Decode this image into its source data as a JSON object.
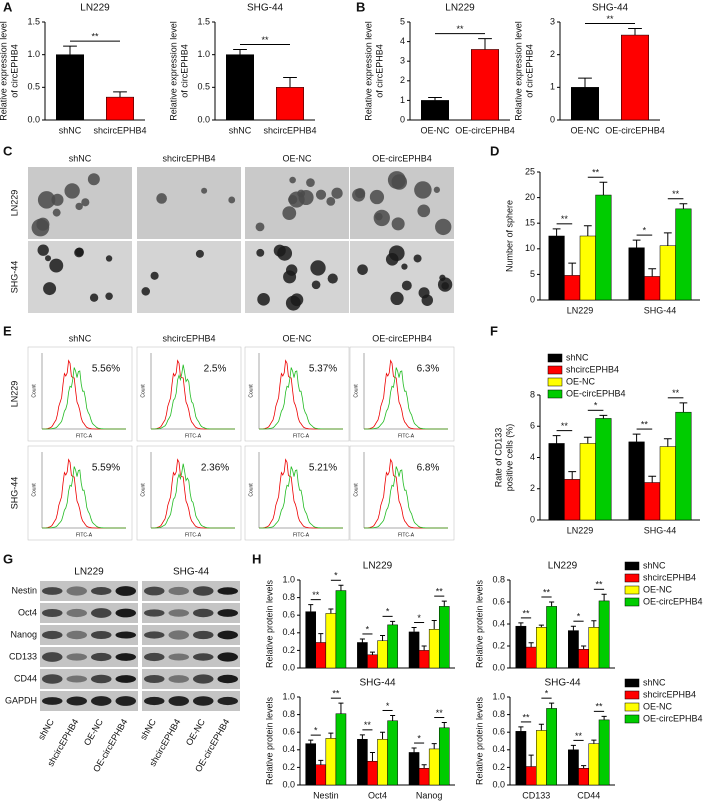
{
  "chart_data": [
    {
      "type": "bar",
      "panel": "A",
      "title": "LN229",
      "ylabel": [
        "Relative expression level",
        "of circEPHB4"
      ],
      "categories": [
        "shNC",
        "shcircEPHB4"
      ],
      "values": [
        1.0,
        0.35
      ],
      "errors": [
        0.13,
        0.08
      ],
      "colors": [
        "#000000",
        "#ff0000"
      ],
      "ylim": [
        0,
        1.5
      ],
      "yticks": [
        {
          "value": 0,
          "label": "0.0"
        },
        0.5,
        {
          "value": 1,
          "label": "1.0"
        },
        1.5
      ],
      "significance": "**"
    },
    {
      "type": "bar",
      "title": "SHG-44",
      "ylabel": [
        "Relative expression level",
        "of circEPHB4"
      ],
      "categories": [
        "shNC",
        "shcircEPHB4"
      ],
      "values": [
        1.0,
        0.5
      ],
      "errors": [
        0.08,
        0.15
      ],
      "colors": [
        "#000000",
        "#ff0000"
      ],
      "ylim": [
        0,
        1.5
      ],
      "yticks": [
        {
          "value": 0,
          "label": "0.0"
        },
        0.5,
        {
          "value": 1,
          "label": "1.0"
        },
        1.5
      ],
      "significance": "**"
    },
    {
      "type": "bar",
      "panel": "B",
      "title": "LN229",
      "ylabel": [
        "Relative expression level",
        "of circEPHB4"
      ],
      "categories": [
        "OE-NC",
        "OE-circEPHB4"
      ],
      "values": [
        1.0,
        3.6
      ],
      "errors": [
        0.15,
        0.55
      ],
      "colors": [
        "#000000",
        "#ff0000"
      ],
      "ylim": [
        0,
        5
      ],
      "yticks": [
        0,
        1,
        2,
        3,
        4,
        5
      ],
      "significance": "**"
    },
    {
      "type": "bar",
      "title": "SHG-44",
      "ylabel": [
        "Relative expression level",
        "of circEPHB4"
      ],
      "categories": [
        "OE-NC",
        "OE-circEPHB4"
      ],
      "values": [
        1.0,
        2.6
      ],
      "errors": [
        0.28,
        0.2
      ],
      "colors": [
        "#000000",
        "#ff0000"
      ],
      "ylim": [
        0,
        3
      ],
      "yticks": [
        0,
        1,
        2,
        3
      ],
      "significance": "**"
    },
    {
      "type": "bar",
      "panel": "D",
      "ylabel": [
        "Number of sphere"
      ],
      "categories": [
        "LN229",
        "SHG-44"
      ],
      "series": [
        {
          "color": "#000000",
          "values": [
            12.5,
            10.2
          ],
          "errors": [
            1.4,
            1.5
          ]
        },
        {
          "color": "#ff0000",
          "values": [
            4.8,
            4.6
          ],
          "errors": [
            2.4,
            1.5
          ]
        },
        {
          "color": "#ffff00",
          "values": [
            12.5,
            10.6
          ],
          "errors": [
            2.0,
            2.5
          ]
        },
        {
          "color": "#00cc00",
          "values": [
            20.5,
            17.8
          ],
          "errors": [
            2.5,
            1.0
          ]
        }
      ],
      "ylim": [
        0,
        25
      ],
      "yticks": [
        0,
        5,
        10,
        15,
        20,
        25
      ],
      "significance": [
        [
          "**",
          "**"
        ],
        [
          "*",
          "**"
        ]
      ]
    },
    {
      "type": "bar",
      "panel": "F",
      "ylabel": [
        "Rate of CD133",
        "positive cells (%)"
      ],
      "categories": [
        "LN229",
        "SHG-44"
      ],
      "legend": "top",
      "series": [
        {
          "name": "shNC",
          "color": "#000000",
          "values": [
            4.9,
            5.0
          ],
          "errors": [
            0.5,
            0.5
          ]
        },
        {
          "name": "shcircEPHB4",
          "color": "#ff0000",
          "values": [
            2.6,
            2.4
          ],
          "errors": [
            0.5,
            0.4
          ]
        },
        {
          "name": "OE-NC",
          "color": "#ffff00",
          "values": [
            4.9,
            4.7
          ],
          "errors": [
            0.4,
            0.5
          ]
        },
        {
          "name": "OE-circEPHB4",
          "color": "#00cc00",
          "values": [
            6.5,
            6.9
          ],
          "errors": [
            0.2,
            0.6
          ]
        }
      ],
      "ylim": [
        0,
        8
      ],
      "yticks": [
        0,
        2,
        4,
        6,
        8
      ],
      "significance": [
        [
          "**",
          "*"
        ],
        [
          "**",
          "**"
        ]
      ]
    },
    {
      "type": "bar",
      "panel": "H",
      "title": "LN229",
      "ylabel": [
        "Relative protein levels"
      ],
      "categories": [
        null,
        null,
        null
      ],
      "series": [
        {
          "color": "#000000",
          "values": [
            0.64,
            0.29,
            0.41
          ],
          "errors": [
            0.08,
            0.04,
            0.05
          ]
        },
        {
          "color": "#ff0000",
          "values": [
            0.29,
            0.15,
            0.2
          ],
          "errors": [
            0.1,
            0.03,
            0.05
          ]
        },
        {
          "color": "#ffff00",
          "values": [
            0.62,
            0.31,
            0.44
          ],
          "errors": [
            0.05,
            0.06,
            0.1
          ]
        },
        {
          "color": "#00cc00",
          "values": [
            0.88,
            0.49,
            0.7
          ],
          "errors": [
            0.06,
            0.04,
            0.06
          ]
        }
      ],
      "ylim": [
        0,
        1
      ],
      "yticks": [
        {
          "value": 0,
          "label": "0.0"
        },
        0.2,
        0.4,
        0.6,
        0.8,
        {
          "value": 1,
          "label": "1.0"
        }
      ],
      "significance": [
        [
          "**",
          "*"
        ],
        [
          "*",
          "*"
        ],
        [
          "*",
          "**"
        ]
      ]
    },
    {
      "type": "bar",
      "title": "LN229",
      "ylabel": [
        "Relative protein levels"
      ],
      "categories": [
        null,
        null
      ],
      "legend": "right",
      "series": [
        {
          "name": "shNC",
          "color": "#000000",
          "values": [
            0.38,
            0.34
          ],
          "errors": [
            0.03,
            0.04
          ]
        },
        {
          "name": "shcircEPHB4",
          "color": "#ff0000",
          "values": [
            0.19,
            0.17
          ],
          "errors": [
            0.04,
            0.03
          ]
        },
        {
          "name": "OE-NC",
          "color": "#ffff00",
          "values": [
            0.37,
            0.37
          ],
          "errors": [
            0.02,
            0.06
          ]
        },
        {
          "name": "OE-circEPHB4",
          "color": "#00cc00",
          "values": [
            0.56,
            0.61
          ],
          "errors": [
            0.04,
            0.06
          ]
        }
      ],
      "ylim": [
        0,
        0.8
      ],
      "yticks": [
        {
          "value": 0,
          "label": "0.0"
        },
        0.2,
        0.4,
        0.6,
        0.8
      ],
      "significance": [
        [
          "**",
          "**"
        ],
        [
          "*",
          "**"
        ]
      ]
    },
    {
      "type": "bar",
      "title": "SHG-44",
      "ylabel": [
        "Relative protein levels"
      ],
      "categories": [
        "Nestin",
        "Oct4",
        "Nanog"
      ],
      "series": [
        {
          "color": "#000000",
          "values": [
            0.47,
            0.52,
            0.37
          ],
          "errors": [
            0.04,
            0.05,
            0.05
          ]
        },
        {
          "color": "#ff0000",
          "values": [
            0.23,
            0.27,
            0.19
          ],
          "errors": [
            0.05,
            0.1,
            0.04
          ]
        },
        {
          "color": "#ffff00",
          "values": [
            0.53,
            0.52,
            0.41
          ],
          "errors": [
            0.06,
            0.08,
            0.06
          ]
        },
        {
          "color": "#00cc00",
          "values": [
            0.81,
            0.73,
            0.65
          ],
          "errors": [
            0.12,
            0.06,
            0.06
          ]
        }
      ],
      "ylim": [
        0,
        1
      ],
      "yticks": [
        {
          "value": 0,
          "label": "0.0"
        },
        0.2,
        0.4,
        0.6,
        0.8,
        {
          "value": 1,
          "label": "1.0"
        }
      ],
      "significance": [
        [
          "*",
          "**"
        ],
        [
          "**",
          "*"
        ],
        [
          "*",
          "**"
        ]
      ]
    },
    {
      "type": "bar",
      "title": "SHG-44",
      "ylabel": [
        "Relative protein levels"
      ],
      "categories": [
        "CD133",
        "CD44"
      ],
      "legend": "right",
      "series": [
        {
          "name": "shNC",
          "color": "#000000",
          "values": [
            0.61,
            0.4
          ],
          "errors": [
            0.05,
            0.05
          ]
        },
        {
          "name": "shcircEPHB4",
          "color": "#ff0000",
          "values": [
            0.21,
            0.19
          ],
          "errors": [
            0.13,
            0.03
          ]
        },
        {
          "name": "OE-NC",
          "color": "#ffff00",
          "values": [
            0.62,
            0.47
          ],
          "errors": [
            0.07,
            0.04
          ]
        },
        {
          "name": "OE-circEPHB4",
          "color": "#00cc00",
          "values": [
            0.87,
            0.74
          ],
          "errors": [
            0.06,
            0.04
          ]
        }
      ],
      "ylim": [
        0,
        1
      ],
      "yticks": [
        {
          "value": 0,
          "label": "0.0"
        },
        0.2,
        0.4,
        0.6,
        0.8,
        {
          "value": 1,
          "label": "1.0"
        }
      ],
      "significance": [
        [
          "**",
          "*"
        ],
        [
          "**",
          "**"
        ]
      ]
    }
  ],
  "sphere_images": {
    "panel": "C",
    "columns": [
      "shNC",
      "shcircEPHB4",
      "OE-NC",
      "OE-circEPHB4"
    ],
    "rows": [
      "LN229",
      "SHG-44"
    ]
  },
  "flow_cytometry": {
    "panel": "E",
    "columns": [
      "shNC",
      "shcircEPHB4",
      "OE-NC",
      "OE-circEPHB4"
    ],
    "rows": [
      "LN229",
      "SHG-44"
    ],
    "percentages": [
      [
        "5.56%",
        "2.5%",
        "5.37%",
        "6.3%"
      ],
      [
        "5.59%",
        "2.36%",
        "5.21%",
        "6.8%"
      ]
    ],
    "x_label": "FITC-A",
    "y_label": "Count"
  },
  "western_blot": {
    "panel": "G",
    "cell_lines": [
      "LN229",
      "SHG-44"
    ],
    "proteins": [
      "Nestin",
      "Oct4",
      "Nanog",
      "CD133",
      "CD44",
      "GAPDH"
    ],
    "lanes": [
      "shNC",
      "shcircEPHB4",
      "OE-NC",
      "OE-circEPHB4"
    ]
  }
}
